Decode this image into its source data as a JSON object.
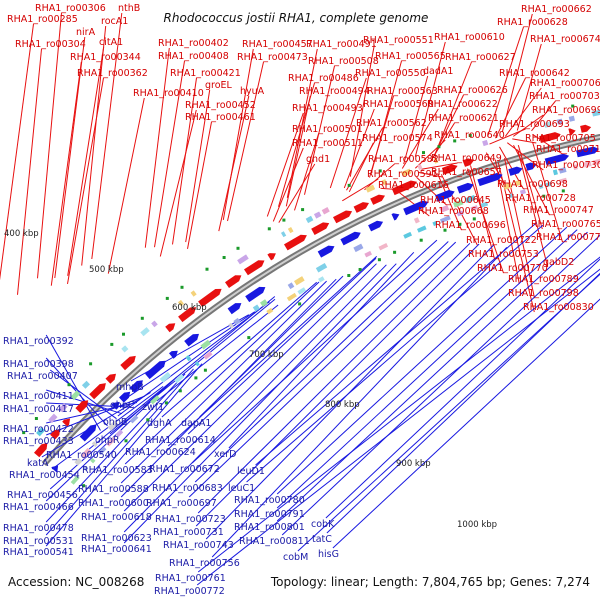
{
  "title": "Rhodococcus jostii RHA1, complete genome",
  "footer": {
    "accession": "Accession: NC_008268",
    "topology": "Topology: linear; Length: 7,804,765 bp; Genes: 7,274"
  },
  "ticks": [
    "400 kbp",
    "500 kbp",
    "600 kbp",
    "700 kbp",
    "800 kbp",
    "900 kbp",
    "1000 kbp"
  ],
  "forward_genes": [
    "RHA1_ro00306",
    "nthB",
    "RHA1_ro00285",
    "rocA1",
    "nirA",
    "citA1",
    "RHA1_ro00304",
    "RHA1_ro00344",
    "RHA1_ro00362",
    "RHA1_ro00402",
    "RHA1_ro00408",
    "RHA1_ro00410",
    "RHA1_ro00421",
    "RHA1_ro00457",
    "RHA1_ro00473",
    "groEL",
    "hyuA",
    "RHA1_ro00452",
    "RHA1_ro00461",
    "RHA1_ro00491",
    "RHA1_ro00486",
    "RHA1_ro00494",
    "RHA1_ro00508",
    "RHA1_ro00493",
    "RHA1_ro00501",
    "RHA1_ro00511",
    "gnd1",
    "RHA1_ro00551",
    "RHA1_ro00565",
    "RHA1_ro00550",
    "RHA1_ro00563",
    "RHA1_ro00560",
    "RHA1_ro00562",
    "RHA1_ro00574",
    "RHA1_ro00582",
    "RHA1_ro00591",
    "RHA1_ro00616",
    "RHA1_ro00610",
    "RHA1_ro00627",
    "dadA1",
    "RHA1_ro00626",
    "RHA1_ro00622",
    "RHA1_ro00621",
    "RHA1_ro00640",
    "RHA1_ro00649",
    "RHA1_ro00657",
    "RHA1_ro00645",
    "RHA1_ro00668",
    "RHA1_ro00696",
    "RHA1_ro00662",
    "RHA1_ro00628",
    "RHA1_ro00674",
    "RHA1_ro00642",
    "RHA1_ro00706",
    "RHA1_ro00703",
    "RHA1_ro00699",
    "RHA1_ro00693",
    "RHA1_ro00705",
    "RHA1_ro00716",
    "RHA1_ro00730",
    "RHA1_ro00698",
    "RHA1_ro00728",
    "RHA1_ro00747",
    "RHA1_ro00765",
    "RHA1_ro00773",
    "RHA1_ro00722",
    "RHA1_ro00753",
    "gabD2",
    "RHA1_ro00770",
    "RHA1_ro00789",
    "RHA1_ro00798",
    "RHA1_ro00830"
  ],
  "reverse_genes": [
    "RHA1_ro00392",
    "RHA1_ro00398",
    "RHA1_ro00407",
    "RHA1_ro00411",
    "RHA1_ro00417",
    "RHA1_ro00422",
    "RHA1_ro00433",
    "katA",
    "RHA1_ro00454",
    "RHA1_ro00456",
    "RHA1_ro00466",
    "RHA1_ro00478",
    "RHA1_ro00531",
    "RHA1_ro00541",
    "mhpB",
    "ohpC",
    "zwf1",
    "ohpB",
    "ohpR",
    "RHA1_ro00540",
    "dghA",
    "dapA1",
    "RHA1_ro00583",
    "RHA1_ro00588",
    "RHA1_ro00600",
    "RHA1_ro00614",
    "RHA1_ro00624",
    "xerD",
    "RHA1_ro00618",
    "RHA1_ro00623",
    "RHA1_ro00641",
    "RHA1_ro00672",
    "RHA1_ro00683",
    "RHA1_ro00697",
    "RHA1_ro00723",
    "RHA1_ro00731",
    "RHA1_ro00743",
    "RHA1_ro00756",
    "leuD1",
    "leuC1",
    "RHA1_ro00780",
    "RHA1_ro00791",
    "RHA1_ro00801",
    "RHA1_ro00811",
    "cobK",
    "tatC",
    "cobM",
    "hisG",
    "RHA1_ro00761",
    "RHA1_ro00772"
  ],
  "colors": {
    "forward": "#e81010",
    "reverse": "#1818e0",
    "backbone": "#888888",
    "label_forward": "#d40000",
    "label_reverse": "#1a1aa6"
  }
}
